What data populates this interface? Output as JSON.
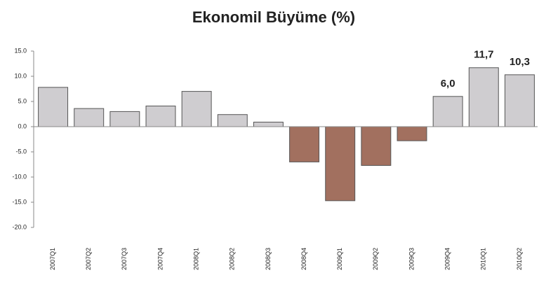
{
  "chart_data": {
    "type": "bar",
    "title": "Ekonomil Büyüme (%)",
    "categories": [
      "2007Q1",
      "2007Q2",
      "2007Q3",
      "2007Q4",
      "2008Q1",
      "2008Q2",
      "2008Q3",
      "2008Q4",
      "2009Q1",
      "2009Q2",
      "2009Q3",
      "2009Q4",
      "2010Q1",
      "2010Q2"
    ],
    "values": [
      7.8,
      3.6,
      3.0,
      4.1,
      7.0,
      2.4,
      0.9,
      -7.0,
      -14.7,
      -7.7,
      -2.8,
      6.0,
      11.7,
      10.3
    ],
    "value_labels": [
      null,
      null,
      null,
      null,
      null,
      null,
      null,
      null,
      null,
      null,
      null,
      "6,0",
      "11,7",
      "10,3"
    ],
    "colors": [
      "#cfcdd0",
      "#cfcdd0",
      "#cfcdd0",
      "#cfcdd0",
      "#cfcdd0",
      "#cfcdd0",
      "#cfcdd0",
      "#a2705f",
      "#a2705f",
      "#a2705f",
      "#a2705f",
      "#cfcdd0",
      "#cfcdd0",
      "#cfcdd0"
    ],
    "ylim": [
      -20,
      15
    ],
    "yticks": [
      {
        "value": 15,
        "label": "15.0"
      },
      {
        "value": 10,
        "label": "10.0"
      },
      {
        "value": 5,
        "label": "5.0"
      },
      {
        "value": 0,
        "label": "0.0"
      },
      {
        "value": -5,
        "label": "-5.0"
      },
      {
        "value": -10,
        "label": "-10.0"
      },
      {
        "value": -15,
        "label": "-15.0"
      },
      {
        "value": -20,
        "label": "-20.0"
      }
    ]
  }
}
